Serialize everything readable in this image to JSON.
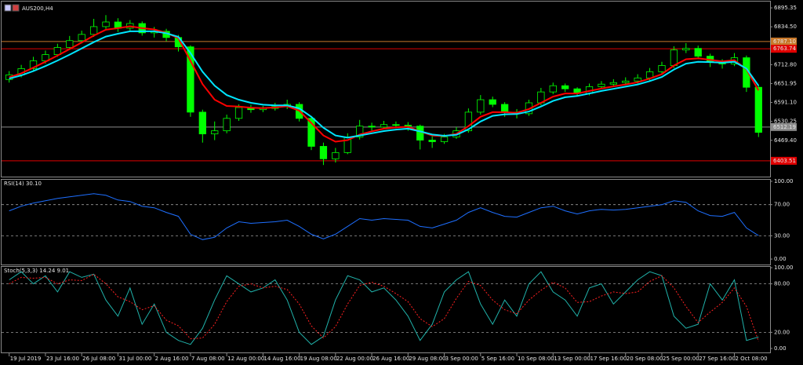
{
  "chart_data": [
    {
      "type": "candlestick",
      "title": "AUS200,H4",
      "color": "#00ff00",
      "open": [
        6665,
        6680,
        6700,
        6725,
        6745,
        6768,
        6790,
        6810,
        6835,
        6850,
        6830,
        6845,
        6815,
        6820,
        6800,
        6770,
        6560,
        6490,
        6500,
        6540,
        6575,
        6568,
        6572,
        6578,
        6585,
        6540,
        6450,
        6410,
        6430,
        6480,
        6515,
        6512,
        6520,
        6518,
        6515,
        6470,
        6465,
        6480,
        6500,
        6560,
        6600,
        6585,
        6560,
        6555,
        6590,
        6625,
        6645,
        6635,
        6620,
        6642,
        6650,
        6655,
        6660,
        6670,
        6690,
        6710,
        6760,
        6765,
        6740,
        6720,
        6715,
        6735,
        6640
      ],
      "high": [
        6692,
        6712,
        6738,
        6758,
        6780,
        6805,
        6822,
        6860,
        6872,
        6862,
        6856,
        6852,
        6834,
        6828,
        6808,
        6775,
        6568,
        6530,
        6552,
        6585,
        6584,
        6580,
        6590,
        6600,
        6592,
        6548,
        6462,
        6445,
        6492,
        6535,
        6526,
        6532,
        6530,
        6528,
        6520,
        6482,
        6490,
        6512,
        6572,
        6615,
        6610,
        6592,
        6570,
        6600,
        6638,
        6655,
        6652,
        6640,
        6652,
        6660,
        6666,
        6672,
        6682,
        6702,
        6722,
        6772,
        6782,
        6774,
        6748,
        6730,
        6750,
        6742,
        6648
      ],
      "low": [
        6655,
        6672,
        6694,
        6716,
        6738,
        6760,
        6781,
        6802,
        6826,
        6818,
        6820,
        6806,
        6800,
        6788,
        6755,
        6545,
        6462,
        6470,
        6492,
        6532,
        6558,
        6560,
        6565,
        6570,
        6530,
        6438,
        6390,
        6398,
        6425,
        6472,
        6500,
        6505,
        6508,
        6500,
        6440,
        6445,
        6458,
        6474,
        6494,
        6552,
        6576,
        6545,
        6540,
        6548,
        6582,
        6618,
        6625,
        6610,
        6614,
        6635,
        6642,
        6648,
        6652,
        6662,
        6684,
        6702,
        6750,
        6730,
        6705,
        6700,
        6708,
        6625,
        6480
      ],
      "close": [
        6680,
        6700,
        6725,
        6745,
        6768,
        6790,
        6810,
        6835,
        6850,
        6830,
        6845,
        6815,
        6820,
        6800,
        6770,
        6560,
        6490,
        6500,
        6540,
        6575,
        6568,
        6572,
        6578,
        6585,
        6540,
        6450,
        6410,
        6430,
        6480,
        6515,
        6512,
        6520,
        6518,
        6515,
        6470,
        6465,
        6480,
        6500,
        6560,
        6600,
        6585,
        6560,
        6555,
        6590,
        6625,
        6645,
        6635,
        6620,
        6642,
        6650,
        6655,
        6660,
        6670,
        6690,
        6710,
        6760,
        6765,
        6740,
        6720,
        6715,
        6735,
        6640,
        6495
      ],
      "overlays": [
        {
          "color": "#ff0000",
          "values": [
            6672,
            6685,
            6703,
            6722,
            6742,
            6763,
            6784,
            6806,
            6825,
            6830,
            6836,
            6830,
            6826,
            6815,
            6798,
            6725,
            6650,
            6600,
            6580,
            6578,
            6574,
            6573,
            6575,
            6579,
            6565,
            6525,
            6485,
            6465,
            6470,
            6488,
            6498,
            6507,
            6511,
            6513,
            6498,
            6485,
            6483,
            6490,
            6515,
            6545,
            6560,
            6560,
            6558,
            6570,
            6590,
            6610,
            6620,
            6620,
            6628,
            6636,
            6643,
            6649,
            6656,
            6668,
            6682,
            6710,
            6730,
            6733,
            6728,
            6723,
            6727,
            6698,
            6630
          ]
        },
        {
          "color": "#00e5ff",
          "values": [
            6668,
            6678,
            6692,
            6708,
            6726,
            6745,
            6765,
            6785,
            6803,
            6812,
            6820,
            6820,
            6820,
            6814,
            6802,
            6750,
            6690,
            6645,
            6615,
            6600,
            6590,
            6584,
            6582,
            6582,
            6572,
            6545,
            6510,
            6485,
            6478,
            6485,
            6492,
            6499,
            6504,
            6507,
            6498,
            6488,
            6484,
            6487,
            6505,
            6530,
            6548,
            6553,
            6554,
            6562,
            6578,
            6596,
            6608,
            6612,
            6620,
            6628,
            6635,
            6642,
            6649,
            6660,
            6673,
            6697,
            6716,
            6722,
            6721,
            6719,
            6722,
            6700,
            6645
          ]
        }
      ],
      "hlines": [
        {
          "value": 6787.1,
          "label": "6787.10",
          "color": "#c8782a"
        },
        {
          "value": 6763.74,
          "label": "6763.74",
          "color": "#e00000"
        },
        {
          "value": 6512.19,
          "label": "6512.19",
          "color": "#8c8c8c"
        },
        {
          "value": 6403.51,
          "label": "6403.51",
          "color": "#e00000"
        }
      ],
      "xlim": [
        -0.5,
        62.5
      ],
      "ylim": [
        6352.7,
        6915.6
      ],
      "yticks": [
        6895.35,
        {
          "value": 6834.5,
          "label": "6834.50"
        },
        {
          "value": 6712.8,
          "label": "6712.80"
        },
        6651.95,
        {
          "value": 6591.1,
          "label": "6591.10"
        },
        6530.25,
        {
          "value": 6469.4,
          "label": "6469.40"
        }
      ],
      "grid": false
    },
    {
      "type": "line",
      "title": "RSI(14) 30.10",
      "series": [
        {
          "color": "#1e6fff",
          "values": [
            62,
            68,
            72,
            75,
            78,
            80,
            82,
            84,
            82,
            76,
            74,
            68,
            66,
            60,
            55,
            32,
            25,
            28,
            40,
            48,
            46,
            47,
            48,
            50,
            42,
            32,
            26,
            32,
            42,
            52,
            50,
            52,
            51,
            50,
            42,
            40,
            45,
            50,
            60,
            66,
            60,
            55,
            54,
            60,
            66,
            68,
            62,
            58,
            62,
            64,
            63,
            64,
            66,
            68,
            70,
            75,
            73,
            62,
            56,
            55,
            60,
            40,
            30.1
          ]
        }
      ],
      "xlim": [
        -0.5,
        62.5
      ],
      "ylim": [
        -7,
        102
      ],
      "yticks": [
        {
          "value": 100,
          "label": "100.00"
        },
        {
          "value": 70,
          "label": "70.00"
        },
        {
          "value": 30,
          "label": "30.00"
        },
        {
          "value": 0,
          "label": "0.00"
        }
      ],
      "levels": [
        70,
        30
      ]
    },
    {
      "type": "line",
      "title": "Stoch(5,3,3) 14.24 9.01",
      "series": [
        {
          "color": "#20b2aa",
          "dashed": false,
          "values": [
            85,
            95,
            80,
            90,
            70,
            95,
            88,
            92,
            60,
            40,
            75,
            30,
            55,
            20,
            10,
            5,
            25,
            60,
            90,
            80,
            70,
            75,
            85,
            60,
            20,
            5,
            15,
            60,
            90,
            85,
            70,
            75,
            60,
            40,
            10,
            30,
            70,
            85,
            95,
            55,
            30,
            60,
            40,
            80,
            95,
            70,
            60,
            40,
            75,
            80,
            55,
            70,
            85,
            95,
            90,
            40,
            25,
            30,
            80,
            60,
            85,
            10,
            14.24
          ]
        },
        {
          "color": "#ff2020",
          "dashed": true,
          "values": [
            80,
            88,
            87,
            88,
            80,
            85,
            84,
            92,
            80,
            64,
            58,
            48,
            53,
            35,
            28,
            12,
            13,
            30,
            58,
            77,
            80,
            75,
            77,
            73,
            55,
            28,
            13,
            27,
            55,
            78,
            82,
            77,
            68,
            58,
            37,
            27,
            37,
            62,
            83,
            78,
            60,
            48,
            43,
            60,
            72,
            82,
            75,
            57,
            58,
            65,
            70,
            68,
            70,
            83,
            90,
            75,
            52,
            32,
            45,
            57,
            75,
            52,
            9.01
          ]
        }
      ],
      "xlim": [
        -0.5,
        62.5
      ],
      "ylim": [
        -4.9,
        101
      ],
      "yticks": [
        {
          "value": 100,
          "label": "100.00"
        },
        {
          "value": 80,
          "label": "80.00"
        },
        {
          "value": 20,
          "label": "20.00"
        },
        {
          "value": 0,
          "label": "0.00"
        }
      ],
      "levels": [
        80,
        20
      ],
      "xticks": [
        {
          "value": 0,
          "label": "19 Jul 2019"
        },
        {
          "value": 3,
          "label": "23 Jul 16:00"
        },
        {
          "value": 6,
          "label": "26 Jul 08:00"
        },
        {
          "value": 9,
          "label": "31 Jul 00:00"
        },
        {
          "value": 12,
          "label": "2 Aug 16:00"
        },
        {
          "value": 15,
          "label": "7 Aug 08:00"
        },
        {
          "value": 18,
          "label": "12 Aug 00:00"
        },
        {
          "value": 21,
          "label": "14 Aug 16:00"
        },
        {
          "value": 24,
          "label": "19 Aug 08:00"
        },
        {
          "value": 27,
          "label": "22 Aug 00:00"
        },
        {
          "value": 30,
          "label": "26 Aug 16:00"
        },
        {
          "value": 33,
          "label": "29 Aug 08:00"
        },
        {
          "value": 36,
          "label": "3 Sep 00:00"
        },
        {
          "value": 39,
          "label": "5 Sep 16:00"
        },
        {
          "value": 42,
          "label": "10 Sep 08:00"
        },
        {
          "value": 45,
          "label": "13 Sep 00:00"
        },
        {
          "value": 48,
          "label": "17 Sep 16:00"
        },
        {
          "value": 51,
          "label": "20 Sep 08:00"
        },
        {
          "value": 54,
          "label": "25 Sep 00:00"
        },
        {
          "value": 57,
          "label": "27 Sep 16:00"
        },
        {
          "value": 60,
          "label": "2 Oct 08:00"
        }
      ]
    }
  ]
}
